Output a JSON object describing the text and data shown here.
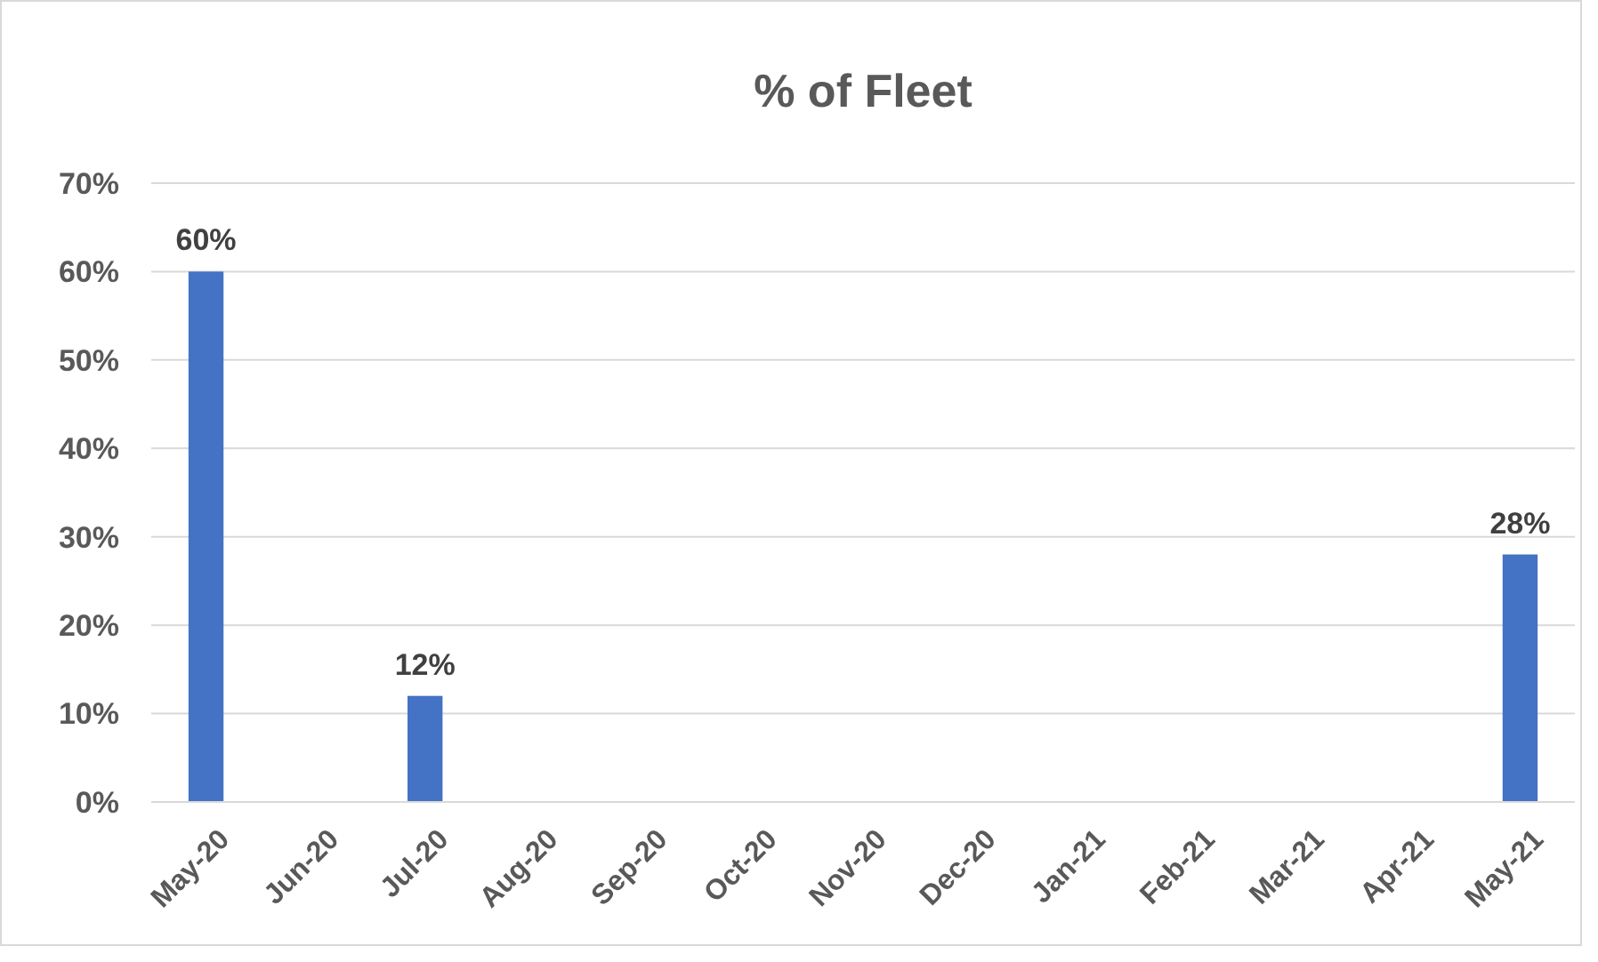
{
  "chart_data": {
    "type": "bar",
    "title": "% of Fleet",
    "categories": [
      "May-20",
      "Jun-20",
      "Jul-20",
      "Aug-20",
      "Sep-20",
      "Oct-20",
      "Nov-20",
      "Dec-20",
      "Jan-21",
      "Feb-21",
      "Mar-21",
      "Apr-21",
      "May-21"
    ],
    "values": [
      60,
      0,
      12,
      0,
      0,
      0,
      0,
      0,
      0,
      0,
      0,
      0,
      28
    ],
    "value_labels": [
      "60%",
      null,
      "12%",
      null,
      null,
      null,
      null,
      null,
      null,
      null,
      null,
      null,
      "28%"
    ],
    "color": "#4472c4",
    "ylim": [
      0,
      70
    ],
    "yticks": [
      {
        "value": 0,
        "label": "0%"
      },
      {
        "value": 10,
        "label": "10%"
      },
      {
        "value": 20,
        "label": "20%"
      },
      {
        "value": 30,
        "label": "30%"
      },
      {
        "value": 40,
        "label": "40%"
      },
      {
        "value": 50,
        "label": "50%"
      },
      {
        "value": 60,
        "label": "60%"
      },
      {
        "value": 70,
        "label": "70%"
      }
    ],
    "grid": "y"
  }
}
